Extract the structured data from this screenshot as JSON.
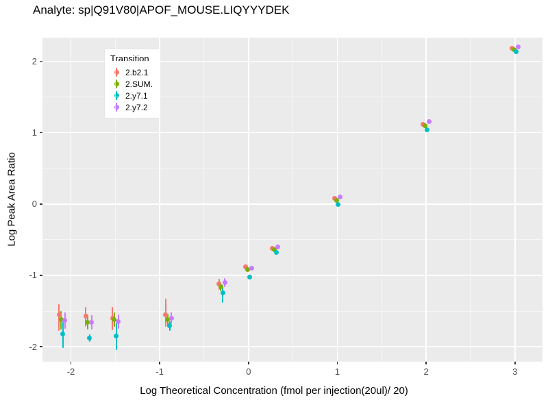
{
  "chart_data": {
    "type": "scatter",
    "title": "Analyte: sp|Q91V80|APOF_MOUSE.LIQYYYDEK",
    "xlabel": "Log Theoretical Concentration (fmol per injection(20ul)/ 20)",
    "ylabel": "Log Peak Area Ratio",
    "xlim": [
      -2.32,
      3.31
    ],
    "ylim": [
      -2.21,
      2.33
    ],
    "x_ticks": [
      -2,
      -1,
      0,
      1,
      2,
      3
    ],
    "x_minor_ticks": [
      -1.5,
      -0.5,
      0.5,
      1.5,
      2.5
    ],
    "y_ticks": [
      -2,
      -1,
      0,
      1,
      2
    ],
    "y_minor_ticks": [
      -1.5,
      -0.5,
      0.5,
      1.5
    ],
    "grid": "major+minor",
    "panel_background": "#EBEBEB",
    "gridline_color": "#FFFFFF",
    "legend": {
      "title": "Transition",
      "position": "top-left-inset",
      "entries": [
        {
          "label": "2.b2.1",
          "color": "#F8766D"
        },
        {
          "label": "2.SUM.",
          "color": "#7CAE00"
        },
        {
          "label": "2.y7.1",
          "color": "#00BFC4"
        },
        {
          "label": "2.y7.2",
          "color": "#C77CFF"
        }
      ]
    },
    "series": [
      {
        "name": "2.b2.1",
        "color": "#F8766D",
        "points": [
          {
            "x": -2.1,
            "y": -1.55,
            "ymin": -1.78,
            "ymax": -1.4
          },
          {
            "x": -1.8,
            "y": -1.57,
            "ymin": -1.72,
            "ymax": -1.44
          },
          {
            "x": -1.5,
            "y": -1.6,
            "ymin": -1.77,
            "ymax": -1.44
          },
          {
            "x": -0.9,
            "y": -1.55,
            "ymin": -1.72,
            "ymax": -1.33
          },
          {
            "x": -0.3,
            "y": -1.12,
            "ymin": -1.2,
            "ymax": -1.05
          },
          {
            "x": 0.0,
            "y": -0.88
          },
          {
            "x": 0.3,
            "y": -0.62
          },
          {
            "x": 1.0,
            "y": 0.08
          },
          {
            "x": 2.0,
            "y": 1.12
          },
          {
            "x": 3.0,
            "y": 2.18
          }
        ]
      },
      {
        "name": "2.SUM.",
        "color": "#7CAE00",
        "points": [
          {
            "x": -2.1,
            "y": -1.62,
            "ymin": -1.76,
            "ymax": -1.5
          },
          {
            "x": -1.8,
            "y": -1.66,
            "ymin": -1.76,
            "ymax": -1.56
          },
          {
            "x": -1.5,
            "y": -1.62,
            "ymin": -1.72,
            "ymax": -1.52
          },
          {
            "x": -0.9,
            "y": -1.62,
            "ymin": -1.7,
            "ymax": -1.54
          },
          {
            "x": -0.3,
            "y": -1.16,
            "ymin": -1.22,
            "ymax": -1.1
          },
          {
            "x": 0.0,
            "y": -0.92
          },
          {
            "x": 0.3,
            "y": -0.64
          },
          {
            "x": 1.0,
            "y": 0.05
          },
          {
            "x": 2.0,
            "y": 1.1
          },
          {
            "x": 3.0,
            "y": 2.16
          }
        ]
      },
      {
        "name": "2.y7.1",
        "color": "#00BFC4",
        "points": [
          {
            "x": -2.1,
            "y": -1.82,
            "ymin": -2.02,
            "ymax": -1.65
          },
          {
            "x": -1.8,
            "y": -1.88,
            "ymin": -1.93,
            "ymax": -1.83
          },
          {
            "x": -1.5,
            "y": -1.85,
            "ymin": -2.05,
            "ymax": -1.67
          },
          {
            "x": -0.9,
            "y": -1.71,
            "ymin": -1.78,
            "ymax": -1.64
          },
          {
            "x": -0.3,
            "y": -1.25,
            "ymin": -1.38,
            "ymax": -1.14
          },
          {
            "x": 0.0,
            "y": -1.02
          },
          {
            "x": 0.3,
            "y": -0.68
          },
          {
            "x": 1.0,
            "y": -0.01
          },
          {
            "x": 2.0,
            "y": 1.04
          },
          {
            "x": 3.0,
            "y": 2.13
          }
        ]
      },
      {
        "name": "2.y7.2",
        "color": "#C77CFF",
        "points": [
          {
            "x": -2.1,
            "y": -1.63,
            "ymin": -1.75,
            "ymax": -1.52
          },
          {
            "x": -1.8,
            "y": -1.66,
            "ymin": -1.76,
            "ymax": -1.56
          },
          {
            "x": -1.5,
            "y": -1.65,
            "ymin": -1.75,
            "ymax": -1.55
          },
          {
            "x": -0.9,
            "y": -1.6,
            "ymin": -1.68,
            "ymax": -1.52
          },
          {
            "x": -0.3,
            "y": -1.1,
            "ymin": -1.16,
            "ymax": -1.04
          },
          {
            "x": 0.0,
            "y": -0.9
          },
          {
            "x": 0.3,
            "y": -0.6
          },
          {
            "x": 1.0,
            "y": 0.1
          },
          {
            "x": 2.0,
            "y": 1.15
          },
          {
            "x": 3.0,
            "y": 2.2
          }
        ]
      }
    ]
  }
}
